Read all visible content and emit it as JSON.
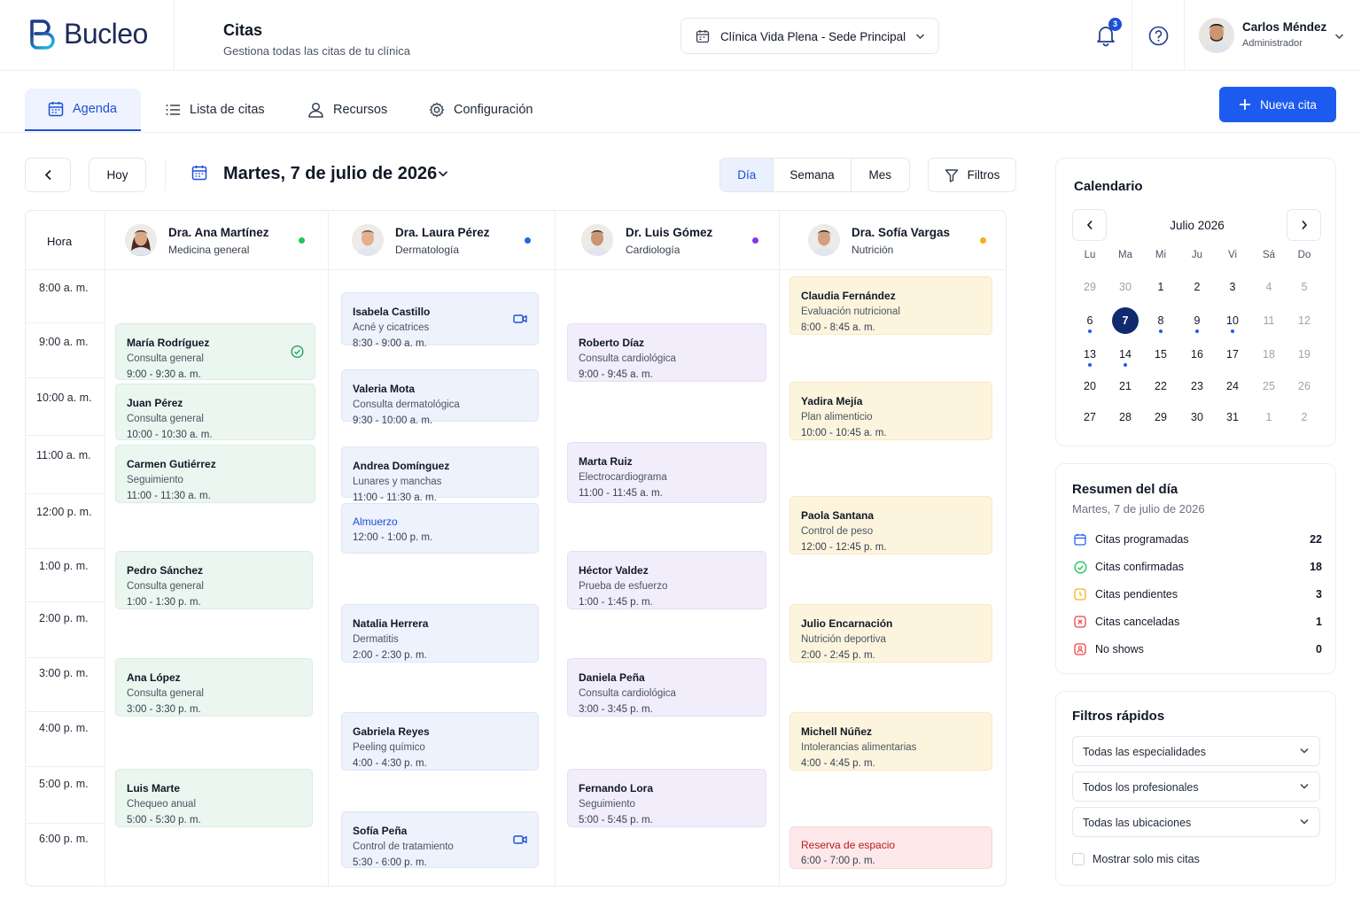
{
  "brand": {
    "name": "Bucleo"
  },
  "header": {
    "title": "Citas",
    "subtitle": "Gestiona todas las citas de tu clínica",
    "clinic": "Clínica Vida Plena - Sede Principal",
    "notifications_count": "3",
    "user_name": "Carlos Méndez",
    "user_role": "Administrador"
  },
  "tabs": [
    {
      "label": "Agenda",
      "icon": "calendar-icon",
      "active": true
    },
    {
      "label": "Lista de citas",
      "icon": "list-icon"
    },
    {
      "label": "Recursos",
      "icon": "user-icon"
    },
    {
      "label": "Configuración",
      "icon": "gear-icon"
    }
  ],
  "new_button": "Nueva cita",
  "toolbar": {
    "today": "Hoy",
    "date": "Martes, 7 de julio de 2026",
    "views": [
      "Día",
      "Semana",
      "Mes"
    ],
    "active_view": "Día",
    "filters": "Filtros"
  },
  "schedule": {
    "hour_header": "Hora",
    "hours": [
      "8:00 a. m.",
      "9:00 a. m.",
      "10:00 a. m.",
      "11:00 a. m.",
      "12:00 p. m.",
      "1:00 p. m.",
      "2:00 p. m.",
      "3:00 p. m.",
      "4:00 p. m.",
      "5:00 p. m.",
      "6:00 p. m."
    ],
    "professionals": [
      {
        "name": "Dra. Ana Martínez",
        "specialty": "Medicina general",
        "status_color": "#22c55e"
      },
      {
        "name": "Dra. Laura Pérez",
        "specialty": "Dermatología",
        "status_color": "#2563eb"
      },
      {
        "name": "Dr. Luis Gómez",
        "specialty": "Cardiología",
        "status_color": "#7c3aed"
      },
      {
        "name": "Dra. Sofía Vargas",
        "specialty": "Nutrición",
        "status_color": "#f5b014"
      }
    ],
    "appointments": [
      [
        {
          "name": "María Rodríguez",
          "desc": "Consulta general",
          "time": "9:00 - 9:30 a. m.",
          "icon": "check-circle-icon"
        },
        {
          "name": "Juan Pérez",
          "desc": "Consulta general",
          "time": "10:00 - 10:30 a. m."
        },
        {
          "name": "Carmen Gutiérrez",
          "desc": "Seguimiento",
          "time": "11:00 - 11:30 a. m."
        },
        {
          "name": "Pedro Sánchez",
          "desc": "Consulta general",
          "time": "1:00 - 1:30 p. m."
        },
        {
          "name": "Ana López",
          "desc": "Consulta general",
          "time": "3:00 - 3:30 p. m."
        },
        {
          "name": "Luis Marte",
          "desc": "Chequeo anual",
          "time": "5:00 - 5:30 p. m."
        }
      ],
      [
        {
          "name": "Isabela Castillo",
          "desc": "Acné y cicatrices",
          "time": "8:30 - 9:00 a. m.",
          "icon": "video-icon"
        },
        {
          "name": "Valeria Mota",
          "desc": "Consulta dermatológica",
          "time": "9:30 - 10:00 a. m."
        },
        {
          "name": "Andrea Domínguez",
          "desc": "Lunares y manchas",
          "time": "11:00 - 11:30 a. m."
        },
        {
          "name": "Almuerzo",
          "desc": "",
          "time": "12:00 - 1:00 p. m."
        },
        {
          "name": "Natalia Herrera",
          "desc": "Dermatitis",
          "time": "2:00 - 2:30 p. m."
        },
        {
          "name": "Gabriela Reyes",
          "desc": "Peeling químico",
          "time": "4:00 - 4:30 p. m."
        },
        {
          "name": "Sofía Peña",
          "desc": "Control de tratamiento",
          "time": "5:30 - 6:00 p. m.",
          "icon": "video-icon"
        }
      ],
      [
        {
          "name": "Roberto Díaz",
          "desc": "Consulta cardiológica",
          "time": "9:00 - 9:45 a. m."
        },
        {
          "name": "Marta Ruiz",
          "desc": "Electrocardiograma",
          "time": "11:00 - 11:45 a. m."
        },
        {
          "name": "Héctor Valdez",
          "desc": "Prueba de esfuerzo",
          "time": "1:00 - 1:45 p. m."
        },
        {
          "name": "Daniela Peña",
          "desc": "Consulta cardiológica",
          "time": "3:00 - 3:45 p. m."
        },
        {
          "name": "Fernando Lora",
          "desc": "Seguimiento",
          "time": "5:00 - 5:45 p. m."
        }
      ],
      [
        {
          "name": "Claudia Fernández",
          "desc": "Evaluación nutricional",
          "time": "8:00 - 8:45 a. m."
        },
        {
          "name": "Yadira Mejía",
          "desc": "Plan alimenticio",
          "time": "10:00 - 10:45 a. m."
        },
        {
          "name": "Paola Santana",
          "desc": "Control de peso",
          "time": "12:00 - 12:45 p. m."
        },
        {
          "name": "Julio Encarnación",
          "desc": "Nutrición deportiva",
          "time": "2:00 - 2:45 p. m."
        },
        {
          "name": "Michell Núñez",
          "desc": "Intolerancias alimentarias",
          "time": "4:00 - 4:45 p. m."
        },
        {
          "name": "Reserva de espacio",
          "desc": "",
          "time": "6:00 - 7:00 p. m."
        }
      ]
    ]
  },
  "calendar": {
    "title": "Calendario",
    "month": "Julio 2026",
    "weekdays": [
      "Lu",
      "Ma",
      "Mi",
      "Ju",
      "Vi",
      "Sá",
      "Do"
    ],
    "weeks": [
      [
        "29",
        "30",
        "1",
        "2",
        "3",
        "4",
        "5"
      ],
      [
        "6",
        "7",
        "8",
        "9",
        "10",
        "11",
        "12"
      ],
      [
        "13",
        "14",
        "15",
        "16",
        "17",
        "18",
        "19"
      ],
      [
        "20",
        "21",
        "22",
        "23",
        "24",
        "25",
        "26"
      ],
      [
        "27",
        "28",
        "29",
        "30",
        "31",
        "1",
        "2"
      ]
    ],
    "selected": "7"
  },
  "summary": {
    "title": "Resumen del día",
    "date": "Martes, 7 de julio de 2026",
    "rows": [
      {
        "label": "Citas programadas",
        "value": "22",
        "icon": "calendar-icon",
        "color": "#2563eb"
      },
      {
        "label": "Citas confirmadas",
        "value": "18",
        "icon": "check-circle-icon",
        "color": "#22c55e"
      },
      {
        "label": "Citas pendientes",
        "value": "3",
        "icon": "clock-icon",
        "color": "#f5b014"
      },
      {
        "label": "Citas canceladas",
        "value": "1",
        "icon": "x-circle-icon",
        "color": "#ef4444"
      },
      {
        "label": "No shows",
        "value": "0",
        "icon": "no-show-icon",
        "color": "#ef4444"
      }
    ]
  },
  "quick_filters": {
    "title": "Filtros rápidos",
    "specialty": "Todas las especialidades",
    "professional": "Todos los profesionales",
    "location": "Todas las ubicaciones",
    "only_mine": "Mostrar solo mis citas"
  }
}
